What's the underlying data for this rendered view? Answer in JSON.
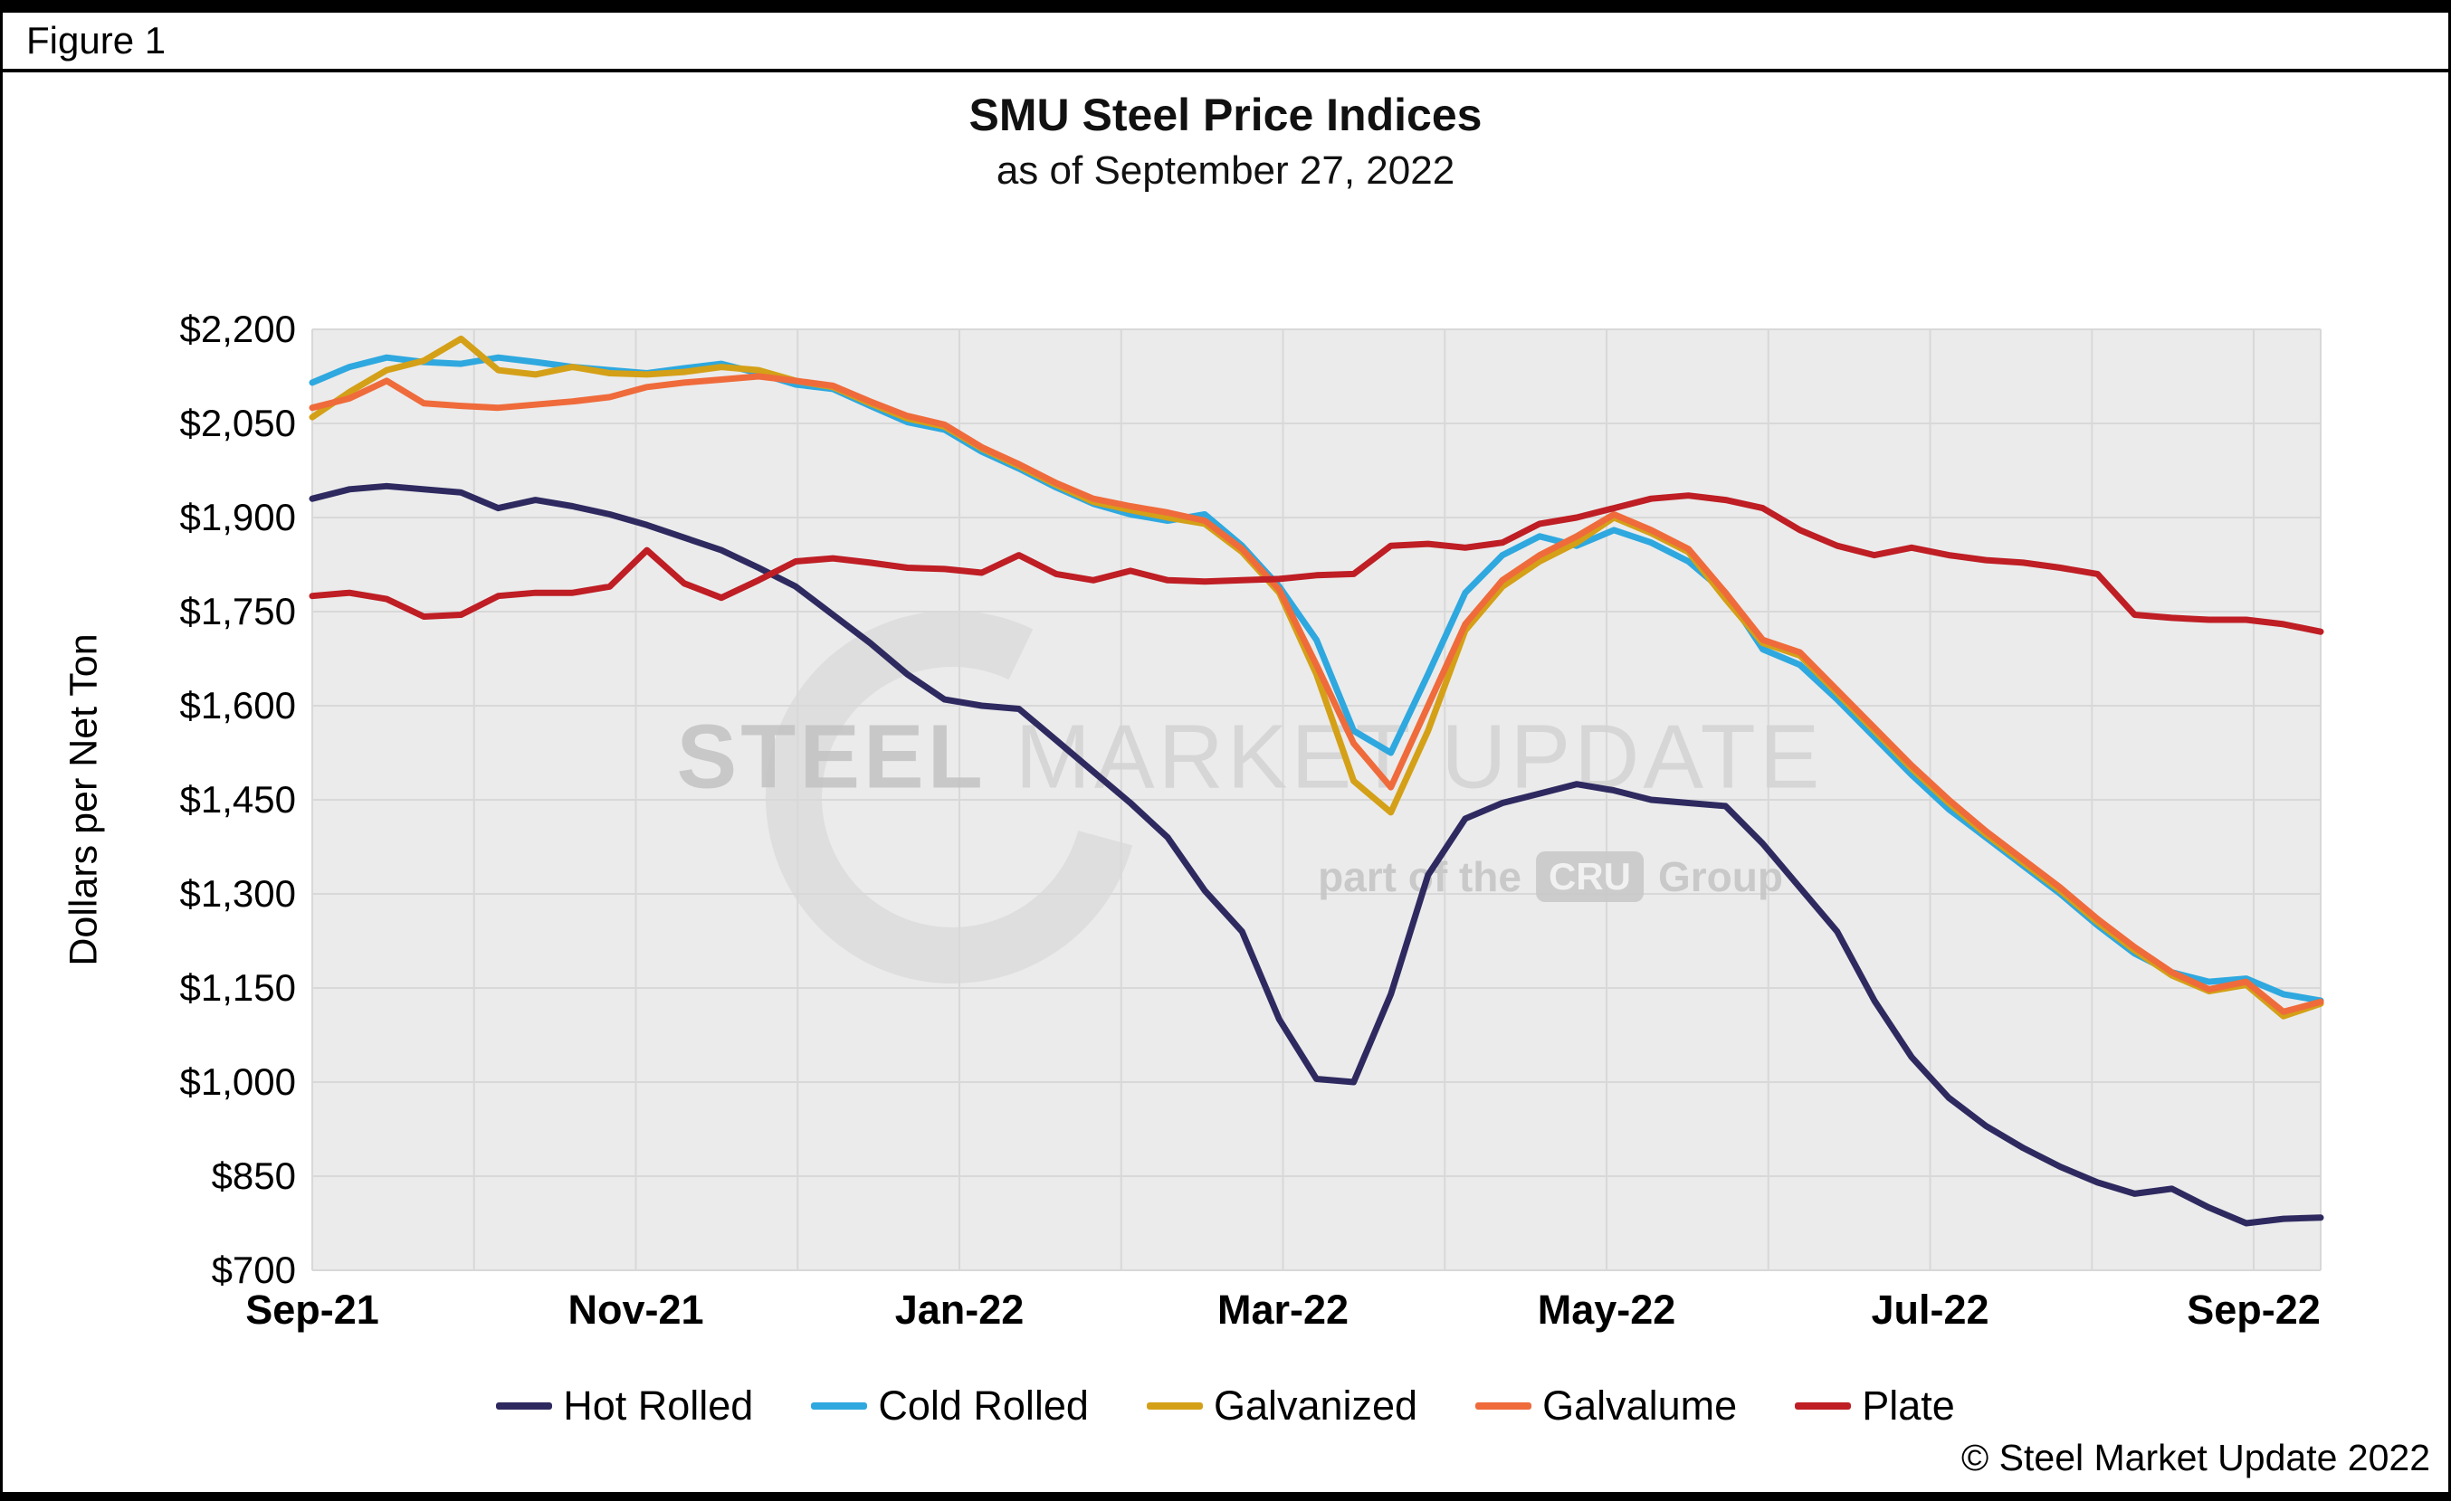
{
  "figure_label": "Figure 1",
  "chart": {
    "title": "SMU Steel Price Indices",
    "subtitle": "as of September 27, 2022",
    "y_axis_title": "Dollars per Net Ton",
    "copyright": "© Steel Market Update 2022"
  },
  "watermark": {
    "word1": "STEEL",
    "word2": " MARKET UPDATE",
    "tagline_prefix": "part of the",
    "tagline_logo": "CRU",
    "tagline_suffix": "Group"
  },
  "chart_data": {
    "type": "line",
    "title": "SMU Steel Price Indices",
    "subtitle": "as of September 27, 2022",
    "ylabel": "Dollars per Net Ton",
    "unit": "USD per net ton",
    "ylim": [
      700,
      2200
    ],
    "grid": true,
    "legend_position": "bottom",
    "weeks_total": 54,
    "sep22_at_week": 52.2,
    "yticks": [
      {
        "value": 700,
        "label": "$700"
      },
      {
        "value": 850,
        "label": "$850"
      },
      {
        "value": 1000,
        "label": "$1,000"
      },
      {
        "value": 1150,
        "label": "$1,150"
      },
      {
        "value": 1300,
        "label": "$1,300"
      },
      {
        "value": 1450,
        "label": "$1,450"
      },
      {
        "value": 1600,
        "label": "$1,600"
      },
      {
        "value": 1750,
        "label": "$1,750"
      },
      {
        "value": 1900,
        "label": "$1,900"
      },
      {
        "value": 2050,
        "label": "$2,050"
      },
      {
        "value": 2200,
        "label": "$2,200"
      }
    ],
    "xticks": [
      {
        "month": 0,
        "label": "Sep-21"
      },
      {
        "month": 2,
        "label": "Nov-21"
      },
      {
        "month": 4,
        "label": "Jan-22"
      },
      {
        "month": 6,
        "label": "Mar-22"
      },
      {
        "month": 8,
        "label": "May-22"
      },
      {
        "month": 10,
        "label": "Jul-22"
      },
      {
        "month": 12,
        "label": "Sep-22"
      }
    ],
    "series": [
      {
        "name": "Hot Rolled",
        "color": "#2E2A60",
        "values": [
          1930,
          1945,
          1950,
          1945,
          1940,
          1915,
          1928,
          1918,
          1905,
          1888,
          1868,
          1848,
          1820,
          1790,
          1745,
          1700,
          1650,
          1610,
          1600,
          1595,
          1545,
          1495,
          1445,
          1390,
          1305,
          1240,
          1100,
          1005,
          1000,
          1140,
          1330,
          1420,
          1445,
          1460,
          1475,
          1465,
          1450,
          1445,
          1440,
          1380,
          1310,
          1240,
          1130,
          1040,
          975,
          930,
          895,
          865,
          840,
          822,
          830,
          800,
          775,
          782,
          784
        ]
      },
      {
        "name": "Cold Rolled",
        "color": "#2EA8DF",
        "values": [
          2115,
          2140,
          2155,
          2148,
          2145,
          2155,
          2148,
          2140,
          2135,
          2130,
          2138,
          2145,
          2130,
          2112,
          2105,
          2078,
          2052,
          2040,
          2005,
          1978,
          1948,
          1922,
          1905,
          1895,
          1905,
          1855,
          1790,
          1705,
          1560,
          1525,
          1650,
          1780,
          1840,
          1870,
          1855,
          1880,
          1860,
          1830,
          1780,
          1690,
          1665,
          1610,
          1550,
          1490,
          1435,
          1390,
          1345,
          1300,
          1250,
          1205,
          1175,
          1160,
          1165,
          1140,
          1130
        ]
      },
      {
        "name": "Galvanized",
        "color": "#D4A017",
        "values": [
          2060,
          2100,
          2135,
          2150,
          2185,
          2135,
          2128,
          2140,
          2130,
          2128,
          2132,
          2140,
          2135,
          2118,
          2108,
          2082,
          2058,
          2045,
          2010,
          1982,
          1952,
          1925,
          1912,
          1900,
          1890,
          1845,
          1780,
          1650,
          1480,
          1430,
          1560,
          1720,
          1790,
          1830,
          1860,
          1900,
          1875,
          1845,
          1770,
          1700,
          1680,
          1620,
          1560,
          1500,
          1445,
          1395,
          1350,
          1305,
          1255,
          1210,
          1170,
          1145,
          1155,
          1105,
          1125
        ]
      },
      {
        "name": "Galvalume",
        "color": "#EF6B3B",
        "values": [
          2075,
          2090,
          2118,
          2082,
          2078,
          2075,
          2080,
          2085,
          2092,
          2108,
          2115,
          2120,
          2125,
          2118,
          2110,
          2085,
          2062,
          2048,
          2012,
          1985,
          1955,
          1930,
          1918,
          1908,
          1895,
          1850,
          1785,
          1665,
          1540,
          1470,
          1600,
          1730,
          1800,
          1840,
          1870,
          1905,
          1880,
          1850,
          1780,
          1705,
          1685,
          1625,
          1565,
          1505,
          1450,
          1400,
          1355,
          1310,
          1260,
          1215,
          1175,
          1148,
          1160,
          1112,
          1128
        ]
      },
      {
        "name": "Plate",
        "color": "#BE1E24",
        "values": [
          1775,
          1780,
          1770,
          1742,
          1745,
          1775,
          1780,
          1780,
          1790,
          1848,
          1795,
          1772,
          1800,
          1830,
          1835,
          1828,
          1820,
          1818,
          1812,
          1840,
          1810,
          1800,
          1815,
          1800,
          1798,
          1800,
          1802,
          1808,
          1810,
          1855,
          1858,
          1852,
          1860,
          1890,
          1900,
          1915,
          1930,
          1935,
          1928,
          1915,
          1880,
          1855,
          1840,
          1852,
          1840,
          1832,
          1828,
          1820,
          1810,
          1745,
          1740,
          1737,
          1737,
          1730,
          1718
        ]
      }
    ]
  }
}
